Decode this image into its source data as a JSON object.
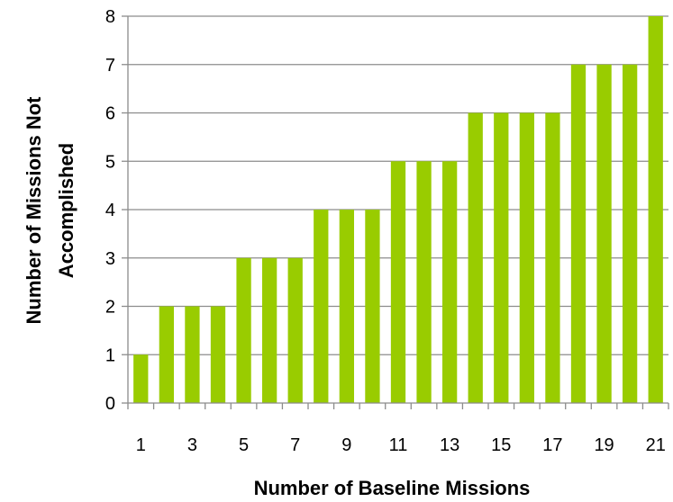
{
  "chart_data": {
    "type": "bar",
    "title": "",
    "xlabel": "Number of Baseline Missions",
    "ylabel_lines": [
      "Number of Missions Not",
      "Accomplished"
    ],
    "categories": [
      "1",
      "2",
      "3",
      "4",
      "5",
      "6",
      "7",
      "8",
      "9",
      "10",
      "11",
      "12",
      "13",
      "14",
      "15",
      "16",
      "17",
      "18",
      "19",
      "20",
      "21"
    ],
    "x_tick_labels": [
      "1",
      "",
      "3",
      "",
      "5",
      "",
      "7",
      "",
      "9",
      "",
      "11",
      "",
      "13",
      "",
      "15",
      "",
      "17",
      "",
      "19",
      "",
      "21"
    ],
    "values": [
      1,
      2,
      2,
      2,
      3,
      3,
      3,
      4,
      4,
      4,
      5,
      5,
      5,
      6,
      6,
      6,
      6,
      7,
      7,
      7,
      8
    ],
    "y_ticks": [
      0,
      1,
      2,
      3,
      4,
      5,
      6,
      7,
      8
    ],
    "ylim": [
      0,
      8
    ],
    "grid": true,
    "legend": "none",
    "bar_color": "#99cc00"
  }
}
